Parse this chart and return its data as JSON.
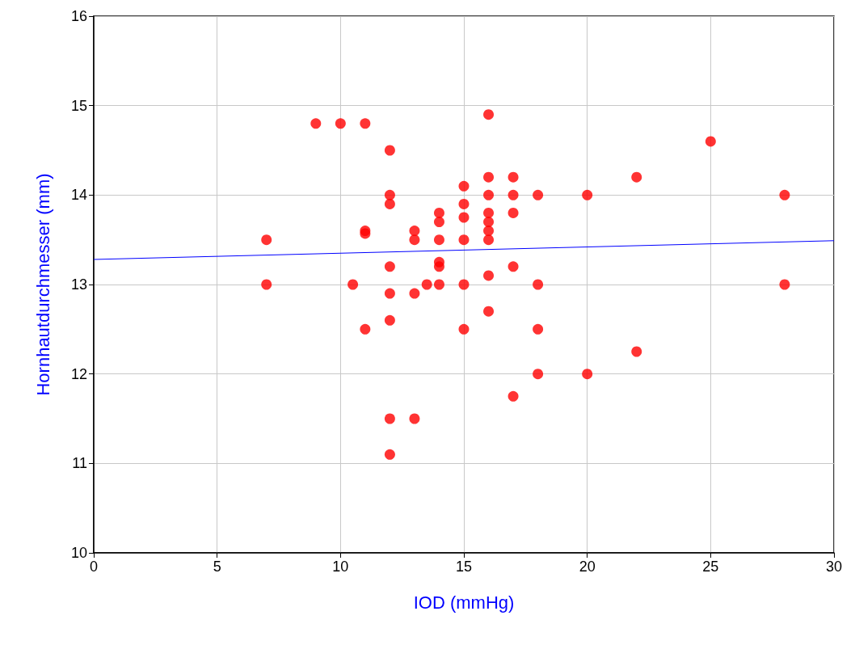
{
  "chart_data": {
    "type": "scatter",
    "xlabel": "IOD (mmHg)",
    "ylabel": "Hornhautdurchmesser (mm)",
    "xlim": [
      0,
      30
    ],
    "xticks": [
      0,
      5,
      10,
      15,
      20,
      25,
      30
    ],
    "ylim": [
      10,
      16
    ],
    "yticks": [
      10,
      11,
      12,
      13,
      14,
      15,
      16
    ],
    "grid": true,
    "marker": "circle",
    "series": [
      {
        "color": "#ff0000",
        "x": [
          7,
          7,
          9,
          10,
          11,
          12,
          12,
          12,
          11,
          11,
          10.5,
          11,
          12,
          12,
          12,
          12,
          12,
          13,
          13,
          13,
          13,
          13.5,
          14,
          14,
          14,
          14,
          14,
          14,
          15,
          15,
          15,
          15,
          15,
          15,
          16,
          16,
          16,
          16,
          16,
          16,
          16,
          16,
          16,
          17,
          17,
          17,
          17,
          17,
          18,
          18,
          18,
          18,
          20,
          20,
          22,
          22,
          25,
          28,
          28
        ],
        "values": [
          13.5,
          13.0,
          14.8,
          14.8,
          14.8,
          14.5,
          14.0,
          13.9,
          13.6,
          13.57,
          13.0,
          12.5,
          13.2,
          12.9,
          12.6,
          11.5,
          11.1,
          13.6,
          13.5,
          12.9,
          11.5,
          13.0,
          13.8,
          13.7,
          13.5,
          13.25,
          13.2,
          13.0,
          14.1,
          13.9,
          13.75,
          13.5,
          13.0,
          12.5,
          14.9,
          14.2,
          14.0,
          13.8,
          13.7,
          13.6,
          13.5,
          13.1,
          12.7,
          14.2,
          14.0,
          13.8,
          13.2,
          11.75,
          14.0,
          13.0,
          12.5,
          12.0,
          14.0,
          12.0,
          14.2,
          12.25,
          14.6,
          14.0,
          13.0
        ]
      },
      {
        "type": "line",
        "color": "#0000ff",
        "marker": "none",
        "line_style": "solid",
        "x": [
          0,
          30
        ],
        "values": [
          13.28,
          13.49
        ]
      }
    ]
  }
}
